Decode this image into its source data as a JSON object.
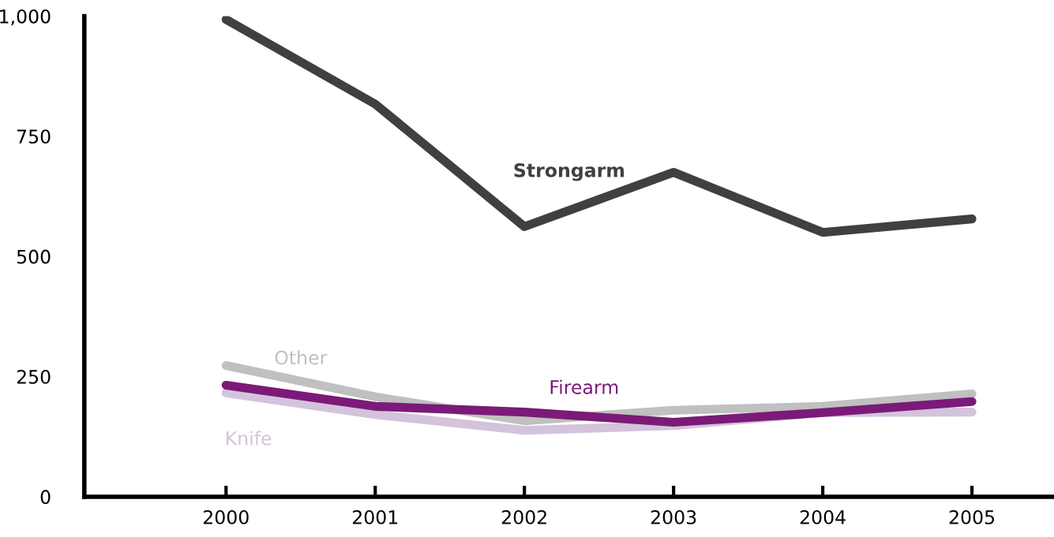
{
  "chart_data": {
    "type": "line",
    "categories": [
      "2000",
      "2001",
      "2002",
      "2003",
      "2004",
      "2005"
    ],
    "series": [
      {
        "name": "Strongarm",
        "color": "#404040",
        "values": [
          993,
          817,
          562,
          675,
          550,
          578
        ]
      },
      {
        "name": "Other",
        "color": "#c0c0c0",
        "values": [
          273,
          208,
          158,
          180,
          188,
          214
        ]
      },
      {
        "name": "Firearm",
        "color": "#7b1a78",
        "values": [
          232,
          188,
          176,
          155,
          175,
          198
        ]
      },
      {
        "name": "Knife",
        "color": "#d4c3dc",
        "values": [
          216,
          171,
          138,
          148,
          175,
          176
        ]
      }
    ],
    "ylim": [
      0,
      1000
    ],
    "yticks": [
      0,
      250,
      500,
      750,
      {
        "value": 1000,
        "label": "1,000"
      }
    ],
    "grid": false,
    "legend": false,
    "marker": "none",
    "line_style": "solid"
  }
}
